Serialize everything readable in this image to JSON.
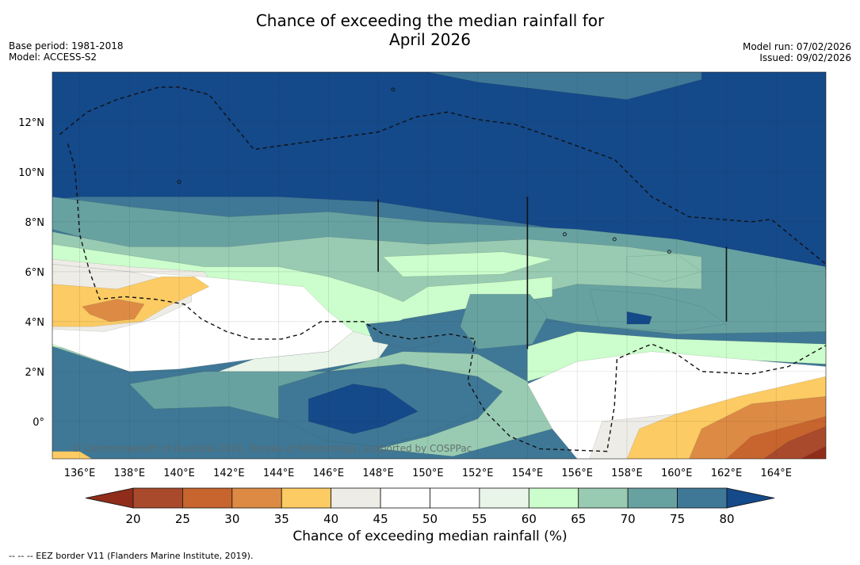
{
  "title_line1": "Chance of exceeding the median rainfall for",
  "title_line2": "April 2026",
  "base_period": "Base period: 1981-2018",
  "model": "Model: ACCESS-S2",
  "model_run": "Model run: 07/02/2026",
  "issued": "Issued: 09/02/2026",
  "copyright": "© Commonwealth of Australia 2026, Bureau of Meteorology, supported by COSPPac",
  "footnote": "--  --  -- EEZ border V11 (Flanders Marine Institute, 2019).",
  "colorbar_label": "Chance of exceeding median rainfall (%)",
  "chart_data": {
    "type": "heatmap",
    "title": "Chance of exceeding the median rainfall for April 2026",
    "x_ticks": [
      "136°E",
      "138°E",
      "140°E",
      "142°E",
      "144°E",
      "146°E",
      "148°E",
      "150°E",
      "152°E",
      "154°E",
      "156°E",
      "158°E",
      "160°E",
      "162°E",
      "164°E"
    ],
    "y_ticks": [
      "12°N",
      "10°N",
      "8°N",
      "6°N",
      "4°N",
      "2°N",
      "0°"
    ],
    "xlim": [
      134.9,
      166.0
    ],
    "ylim": [
      -1.5,
      14.0
    ],
    "colorbar": {
      "ticks": [
        "20",
        "25",
        "30",
        "35",
        "40",
        "45",
        "50",
        "55",
        "60",
        "65",
        "70",
        "75",
        "80"
      ],
      "colors": [
        "#8f2d1a",
        "#a84a2b",
        "#c8642e",
        "#dd8b44",
        "#fccb63",
        "#eeece6",
        "#ffffff",
        "#ffffff",
        "#eaf5e9",
        "#ccfdcc",
        "#98cbb2",
        "#67a2a1",
        "#3f7896",
        "#14498a"
      ]
    },
    "regions": [
      {
        "name": "north-very-wet",
        "value": ">80",
        "lat_range": [
          9,
          14
        ],
        "lon_range": [
          135,
          166
        ]
      },
      {
        "name": "central-mixed",
        "value": "60-75",
        "lat_range": [
          2,
          8
        ],
        "lon_range": [
          146,
          166
        ]
      },
      {
        "name": "west-dry-patch",
        "value": "30-40",
        "lat_range": [
          4,
          6
        ],
        "lon_range": [
          136,
          141
        ]
      },
      {
        "name": "south-central-wet",
        "value": "75-80",
        "lat_range": [
          -1,
          2
        ],
        "lon_range": [
          145,
          150
        ]
      },
      {
        "name": "southeast-dry",
        "value": "20-40",
        "lat_range": [
          -1.5,
          2
        ],
        "lon_range": [
          157,
          166
        ]
      }
    ]
  }
}
